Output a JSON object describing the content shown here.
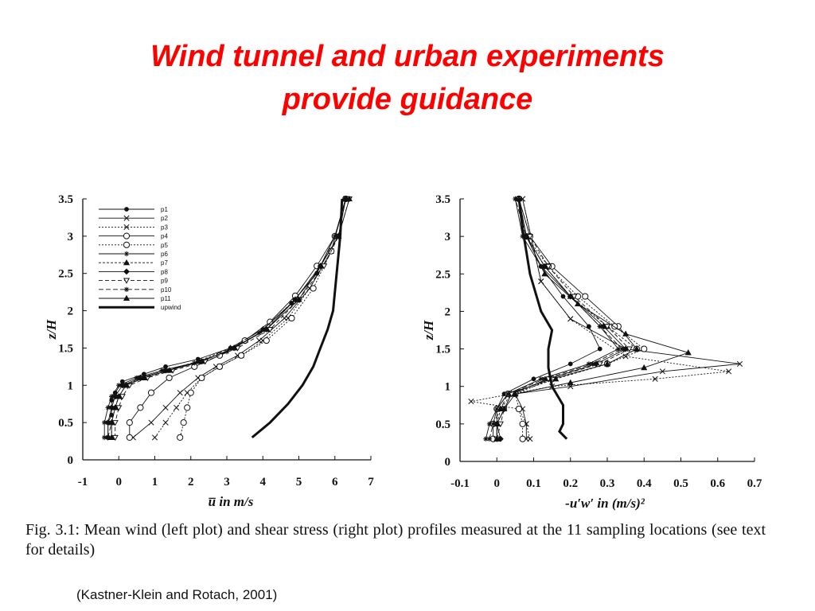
{
  "slide": {
    "title_line1": "Wind tunnel and urban experiments",
    "title_line2": "provide guidance",
    "caption": "Fig. 3.1: Mean wind (left plot) and shear stress (right plot) profiles measured at the 11 sampling locations (see text for details)",
    "citation": "(Kastner-Klein and Rotach, 2001)",
    "title_color": "#ff0000"
  },
  "chart_data": [
    {
      "type": "line",
      "title": "",
      "xlabel": "u̅  in m/s",
      "ylabel": "z/H",
      "xlim": [
        -1,
        7
      ],
      "ylim": [
        0,
        3.5
      ],
      "xticks": [
        "-1",
        "0",
        "1",
        "2",
        "3",
        "4",
        "5",
        "6",
        "7"
      ],
      "yticks": [
        "0",
        "0.5",
        "1",
        "1.5",
        "2",
        "2.5",
        "3",
        "3.5"
      ],
      "legend_position": "top-left",
      "series": [
        {
          "name": "p1",
          "marker": "dot",
          "x": [
            -0.3,
            -0.3,
            -0.2,
            -0.2,
            -0.1,
            0.1,
            0.7,
            1.3,
            2.2,
            3.1,
            4.0,
            4.8,
            5.5,
            6.0,
            6.3
          ],
          "y": [
            0.3,
            0.5,
            0.6,
            0.8,
            0.9,
            1.05,
            1.15,
            1.25,
            1.35,
            1.5,
            1.75,
            2.1,
            2.5,
            3.0,
            3.5
          ]
        },
        {
          "name": "p2",
          "marker": "x",
          "x": [
            0.4,
            0.9,
            1.3,
            1.7,
            2.2,
            2.7,
            3.3,
            3.9,
            4.6,
            5.3,
            5.9,
            6.3
          ],
          "y": [
            0.3,
            0.5,
            0.7,
            0.9,
            1.1,
            1.25,
            1.4,
            1.6,
            1.9,
            2.3,
            2.8,
            3.5
          ]
        },
        {
          "name": "p3",
          "marker": "x",
          "x": [
            1.0,
            1.3,
            1.6,
            1.9,
            2.3,
            2.8,
            3.4,
            4.0,
            4.7,
            5.3,
            5.9,
            6.3
          ],
          "y": [
            0.3,
            0.5,
            0.7,
            0.9,
            1.1,
            1.25,
            1.4,
            1.6,
            1.9,
            2.3,
            2.8,
            3.5
          ]
        },
        {
          "name": "p4",
          "marker": "circle",
          "x": [
            0.3,
            0.3,
            0.6,
            0.9,
            1.4,
            2.1,
            2.8,
            3.5,
            4.2,
            4.9,
            5.5,
            6.0,
            6.3
          ],
          "y": [
            0.3,
            0.5,
            0.7,
            0.9,
            1.1,
            1.25,
            1.4,
            1.6,
            1.85,
            2.2,
            2.6,
            3.0,
            3.5
          ]
        },
        {
          "name": "p5",
          "marker": "circle",
          "x": [
            1.7,
            1.8,
            1.9,
            2.0,
            2.3,
            2.8,
            3.4,
            4.1,
            4.8,
            5.4,
            5.9,
            6.3
          ],
          "y": [
            0.3,
            0.5,
            0.7,
            0.9,
            1.1,
            1.25,
            1.4,
            1.6,
            1.9,
            2.3,
            2.8,
            3.5
          ]
        },
        {
          "name": "p6",
          "marker": "star",
          "x": [
            -0.4,
            -0.4,
            -0.3,
            -0.2,
            0.0,
            0.5,
            1.2,
            2.1,
            3.0,
            3.9,
            4.8,
            5.5,
            6.0,
            6.3
          ],
          "y": [
            0.3,
            0.5,
            0.7,
            0.85,
            1.0,
            1.1,
            1.2,
            1.3,
            1.45,
            1.7,
            2.1,
            2.5,
            3.0,
            3.5
          ]
        },
        {
          "name": "p7",
          "marker": "triangle",
          "x": [
            -0.2,
            -0.2,
            -0.1,
            0.0,
            0.2,
            0.6,
            1.3,
            2.2,
            3.1,
            4.0,
            4.9,
            5.6,
            6.1,
            6.3
          ],
          "y": [
            0.3,
            0.5,
            0.7,
            0.85,
            1.0,
            1.1,
            1.2,
            1.32,
            1.5,
            1.75,
            2.15,
            2.6,
            3.0,
            3.5
          ]
        },
        {
          "name": "p8",
          "marker": "diamond",
          "x": [
            -0.3,
            -0.3,
            -0.2,
            -0.1,
            0.1,
            0.6,
            1.3,
            2.3,
            3.2,
            4.1,
            4.9,
            5.6,
            6.1,
            6.3
          ],
          "y": [
            0.3,
            0.5,
            0.7,
            0.85,
            1.0,
            1.1,
            1.2,
            1.32,
            1.5,
            1.75,
            2.15,
            2.6,
            3.0,
            3.5
          ]
        },
        {
          "name": "p9",
          "marker": "tri-down",
          "x": [
            -0.1,
            -0.1,
            0.0,
            0.1,
            0.3,
            0.8,
            1.5,
            2.4,
            3.3,
            4.2,
            5.0,
            5.7,
            6.1,
            6.4
          ],
          "y": [
            0.3,
            0.5,
            0.7,
            0.85,
            1.0,
            1.1,
            1.2,
            1.32,
            1.5,
            1.75,
            2.15,
            2.6,
            3.0,
            3.5
          ]
        },
        {
          "name": "p10",
          "marker": "star",
          "x": [
            -0.3,
            -0.2,
            -0.1,
            0.0,
            0.2,
            0.7,
            1.4,
            2.3,
            3.2,
            4.1,
            4.9,
            5.6,
            6.1,
            6.3
          ],
          "y": [
            0.3,
            0.5,
            0.7,
            0.85,
            1.0,
            1.1,
            1.2,
            1.32,
            1.5,
            1.75,
            2.15,
            2.6,
            3.0,
            3.5
          ]
        },
        {
          "name": "p11",
          "marker": "triangle",
          "x": [
            -0.2,
            -0.2,
            -0.1,
            0.0,
            0.2,
            0.7,
            1.4,
            2.3,
            3.2,
            4.1,
            5.0,
            5.6,
            6.1,
            6.4
          ],
          "y": [
            0.3,
            0.5,
            0.7,
            0.85,
            1.0,
            1.1,
            1.2,
            1.32,
            1.5,
            1.75,
            2.15,
            2.6,
            3.0,
            3.5
          ]
        },
        {
          "name": "upwind",
          "marker": "none",
          "bold": true,
          "x": [
            3.7,
            4.2,
            4.7,
            5.1,
            5.4,
            5.6,
            5.8,
            5.95,
            6.05,
            6.15,
            6.2
          ],
          "y": [
            0.3,
            0.5,
            0.75,
            1.0,
            1.25,
            1.5,
            1.75,
            2.0,
            2.5,
            3.0,
            3.5
          ]
        }
      ]
    },
    {
      "type": "line",
      "title": "",
      "xlabel": "-u′w′ in (m/s)²",
      "ylabel": "z/H",
      "xlim": [
        -0.1,
        0.7
      ],
      "ylim": [
        0,
        3.5
      ],
      "xticks": [
        "-0.1",
        "0",
        "0.1",
        "0.2",
        "0.3",
        "0.4",
        "0.5",
        "0.6",
        "0.7"
      ],
      "yticks": [
        "0",
        "0.5",
        "1",
        "1.5",
        "2",
        "2.5",
        "3",
        "3.5"
      ],
      "series": [
        {
          "name": "p1",
          "marker": "dot",
          "x": [
            0.0,
            0.0,
            0.0,
            0.02,
            0.1,
            0.2,
            0.28,
            0.25,
            0.18,
            0.12,
            0.08,
            0.06
          ],
          "y": [
            0.3,
            0.5,
            0.7,
            0.9,
            1.1,
            1.3,
            1.5,
            1.8,
            2.2,
            2.6,
            3.0,
            3.5
          ]
        },
        {
          "name": "p2",
          "marker": "x",
          "x": [
            0.08,
            0.08,
            0.07,
            0.05,
            0.2,
            0.45,
            0.66,
            0.35,
            0.2,
            0.12,
            0.07
          ],
          "y": [
            0.3,
            0.5,
            0.7,
            0.9,
            1.0,
            1.2,
            1.3,
            1.5,
            1.9,
            2.4,
            3.5
          ]
        },
        {
          "name": "p3",
          "marker": "x",
          "x": [
            0.09,
            0.08,
            0.06,
            -0.07,
            0.15,
            0.43,
            0.63,
            0.35,
            0.2,
            0.12,
            0.07
          ],
          "y": [
            0.3,
            0.5,
            0.7,
            0.8,
            1.0,
            1.1,
            1.2,
            1.4,
            1.9,
            2.4,
            3.5
          ]
        },
        {
          "name": "p4",
          "marker": "circle",
          "x": [
            -0.01,
            -0.01,
            0.0,
            0.03,
            0.15,
            0.3,
            0.38,
            0.33,
            0.24,
            0.15,
            0.09,
            0.06
          ],
          "y": [
            0.3,
            0.5,
            0.7,
            0.9,
            1.1,
            1.3,
            1.5,
            1.8,
            2.2,
            2.6,
            3.0,
            3.5
          ]
        },
        {
          "name": "p5",
          "marker": "circle",
          "x": [
            0.07,
            0.07,
            0.06,
            0.05,
            0.15,
            0.3,
            0.4,
            0.32,
            0.22,
            0.14,
            0.08,
            0.06
          ],
          "y": [
            0.3,
            0.5,
            0.7,
            0.9,
            1.1,
            1.3,
            1.5,
            1.8,
            2.2,
            2.6,
            3.0,
            3.5
          ]
        },
        {
          "name": "p6",
          "marker": "star",
          "x": [
            -0.03,
            -0.02,
            0.0,
            0.03,
            0.12,
            0.25,
            0.33,
            0.28,
            0.2,
            0.12,
            0.07,
            0.05
          ],
          "y": [
            0.3,
            0.5,
            0.7,
            0.9,
            1.1,
            1.3,
            1.5,
            1.8,
            2.2,
            2.6,
            3.0,
            3.5
          ]
        },
        {
          "name": "p7",
          "marker": "triangle",
          "x": [
            0.0,
            0.0,
            0.01,
            0.04,
            0.16,
            0.3,
            0.38,
            0.3,
            0.2,
            0.13,
            0.08,
            0.06
          ],
          "y": [
            0.3,
            0.5,
            0.7,
            0.9,
            1.1,
            1.3,
            1.5,
            1.8,
            2.2,
            2.6,
            3.0,
            3.5
          ]
        },
        {
          "name": "p8",
          "marker": "diamond",
          "x": [
            0.01,
            0.0,
            0.02,
            0.04,
            0.14,
            0.27,
            0.35,
            0.29,
            0.2,
            0.13,
            0.08,
            0.06
          ],
          "y": [
            0.3,
            0.5,
            0.7,
            0.9,
            1.1,
            1.3,
            1.5,
            1.8,
            2.2,
            2.6,
            3.0,
            3.5
          ]
        },
        {
          "name": "p9",
          "marker": "tri-down",
          "x": [
            0.0,
            0.01,
            0.02,
            0.04,
            0.14,
            0.28,
            0.36,
            0.3,
            0.21,
            0.14,
            0.09,
            0.06
          ],
          "y": [
            0.3,
            0.5,
            0.7,
            0.9,
            1.1,
            1.3,
            1.5,
            1.8,
            2.2,
            2.6,
            3.0,
            3.5
          ]
        },
        {
          "name": "p10",
          "marker": "star",
          "x": [
            -0.02,
            -0.01,
            0.01,
            0.03,
            0.13,
            0.26,
            0.34,
            0.28,
            0.2,
            0.13,
            0.08,
            0.05
          ],
          "y": [
            0.3,
            0.5,
            0.7,
            0.9,
            1.1,
            1.3,
            1.5,
            1.8,
            2.2,
            2.6,
            3.0,
            3.5
          ]
        },
        {
          "name": "p11",
          "marker": "triangle",
          "x": [
            0.0,
            0.0,
            0.02,
            0.05,
            0.2,
            0.4,
            0.52,
            0.35,
            0.22,
            0.13,
            0.08,
            0.06
          ],
          "y": [
            0.3,
            0.5,
            0.7,
            0.9,
            1.05,
            1.25,
            1.45,
            1.7,
            2.1,
            2.5,
            3.0,
            3.5
          ]
        },
        {
          "name": "upwind",
          "marker": "none",
          "bold": true,
          "x": [
            0.19,
            0.17,
            0.18,
            0.18,
            0.15,
            0.14,
            0.14,
            0.15,
            0.12,
            0.09,
            0.08,
            0.07,
            0.06
          ],
          "y": [
            0.3,
            0.4,
            0.5,
            0.75,
            1.0,
            1.25,
            1.5,
            1.75,
            2.0,
            2.5,
            2.8,
            3.1,
            3.5
          ]
        }
      ]
    }
  ]
}
